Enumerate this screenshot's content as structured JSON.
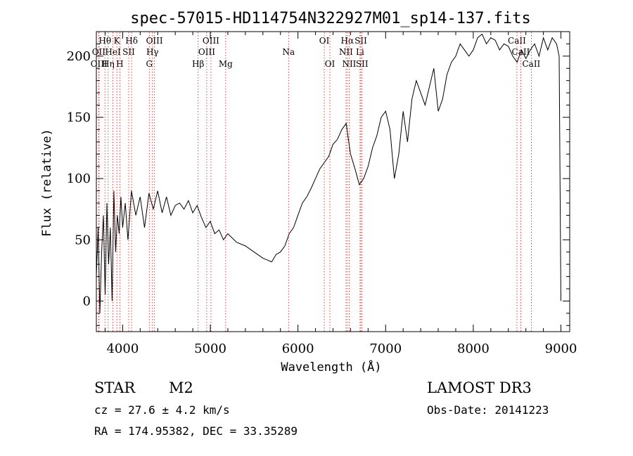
{
  "chart_data": {
    "type": "line",
    "title": "spec-57015-HD114754N322927M01_sp14-137.fits",
    "xlabel": "Wavelength (Å)",
    "ylabel": "Flux (relative)",
    "xlim": [
      3700,
      9100
    ],
    "ylim": [
      -25,
      220
    ],
    "xticks": [
      4000,
      5000,
      6000,
      7000,
      8000,
      9000
    ],
    "yticks": [
      0,
      50,
      100,
      150,
      200
    ],
    "grid": false,
    "legend": "none",
    "colors": {
      "spectrum": "#000000",
      "line_markers": "#b22222",
      "axes": "#000000"
    },
    "series": [
      {
        "x": [
          3700,
          3720,
          3740,
          3760,
          3780,
          3800,
          3820,
          3840,
          3860,
          3880,
          3900,
          3920,
          3940,
          3960,
          3980,
          4000,
          4030,
          4060,
          4100,
          4150,
          4200,
          4250,
          4300,
          4350,
          4400,
          4450,
          4500,
          4550,
          4600,
          4650,
          4700,
          4750,
          4800,
          4850,
          4900,
          4950,
          5000,
          5050,
          5100,
          5150,
          5200,
          5300,
          5400,
          5500,
          5600,
          5700,
          5750,
          5800,
          5850,
          5900,
          5950,
          6000,
          6050,
          6100,
          6150,
          6200,
          6250,
          6300,
          6350,
          6400,
          6450,
          6500,
          6550,
          6580,
          6600,
          6650,
          6700,
          6750,
          6800,
          6850,
          6900,
          6950,
          7000,
          7050,
          7100,
          7150,
          7200,
          7250,
          7300,
          7350,
          7400,
          7450,
          7500,
          7550,
          7600,
          7650,
          7700,
          7750,
          7800,
          7850,
          7900,
          7950,
          8000,
          8050,
          8100,
          8150,
          8200,
          8250,
          8300,
          8350,
          8400,
          8450,
          8500,
          8550,
          8600,
          8650,
          8700,
          8750,
          8800,
          8850,
          8900,
          8950,
          8980,
          9000
        ],
        "y": [
          20,
          60,
          -10,
          40,
          70,
          5,
          80,
          30,
          60,
          0,
          90,
          40,
          70,
          55,
          85,
          60,
          80,
          50,
          90,
          70,
          85,
          60,
          88,
          75,
          90,
          72,
          85,
          70,
          78,
          80,
          75,
          82,
          72,
          78,
          68,
          60,
          65,
          55,
          58,
          50,
          55,
          48,
          45,
          40,
          35,
          32,
          38,
          40,
          45,
          55,
          60,
          70,
          80,
          85,
          92,
          100,
          108,
          113,
          118,
          128,
          132,
          140,
          145,
          130,
          120,
          108,
          95,
          100,
          110,
          125,
          135,
          150,
          155,
          140,
          100,
          120,
          155,
          130,
          165,
          180,
          170,
          160,
          175,
          190,
          155,
          165,
          185,
          195,
          200,
          210,
          205,
          200,
          205,
          215,
          218,
          210,
          215,
          213,
          205,
          210,
          208,
          200,
          195,
          205,
          198,
          205,
          210,
          200,
          215,
          205,
          215,
          210,
          200,
          0
        ]
      }
    ],
    "line_markers": [
      {
        "label": "Hθ",
        "x": 3798,
        "row": 1
      },
      {
        "label": "OII",
        "x": 3727,
        "row": 2
      },
      {
        "label": "OIII",
        "x": 3730,
        "row": 3
      },
      {
        "label": "K",
        "x": 3934,
        "row": 1
      },
      {
        "label": "HeI",
        "x": 3889,
        "row": 2
      },
      {
        "label": "Hη",
        "x": 3835,
        "row": 3
      },
      {
        "label": "Hδ",
        "x": 4102,
        "row": 1
      },
      {
        "label": "SII",
        "x": 4069,
        "row": 2
      },
      {
        "label": "H",
        "x": 3968,
        "row": 3
      },
      {
        "label": "OIII",
        "x": 4363,
        "row": 1
      },
      {
        "label": "Hγ",
        "x": 4340,
        "row": 2
      },
      {
        "label": "G",
        "x": 4304,
        "row": 3
      },
      {
        "label": "OIII",
        "x": 5007,
        "row": 1
      },
      {
        "label": "OIII",
        "x": 4959,
        "row": 2
      },
      {
        "label": "Hβ",
        "x": 4861,
        "row": 3
      },
      {
        "label": "Mg",
        "x": 5175,
        "row": 3
      },
      {
        "label": "Na",
        "x": 5893,
        "row": 2
      },
      {
        "label": "OI",
        "x": 6300,
        "row": 1
      },
      {
        "label": "OI",
        "x": 6364,
        "row": 3
      },
      {
        "label": "Hα",
        "x": 6563,
        "row": 1
      },
      {
        "label": "SII",
        "x": 6717,
        "row": 1
      },
      {
        "label": "NII",
        "x": 6548,
        "row": 2
      },
      {
        "label": "Li",
        "x": 6708,
        "row": 2
      },
      {
        "label": "NII",
        "x": 6584,
        "row": 3
      },
      {
        "label": "SII",
        "x": 6731,
        "row": 3
      },
      {
        "label": "CaII",
        "x": 8498,
        "row": 1
      },
      {
        "label": "CaII",
        "x": 8542,
        "row": 2
      },
      {
        "label": "CaII",
        "x": 8662,
        "row": 3
      }
    ]
  },
  "info": {
    "object_type": "STAR",
    "subclass": "M2",
    "survey": "LAMOST DR3",
    "cz": "cz = 27.6 ± 4.2 km/s",
    "obs_date": "Obs-Date: 20141223",
    "coords": "RA = 174.95382, DEC =  33.35289"
  }
}
